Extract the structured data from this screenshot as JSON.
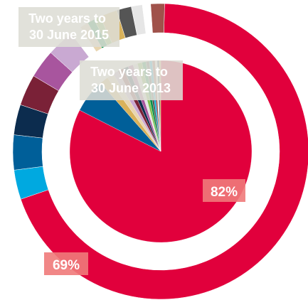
{
  "chart_data": [
    {
      "type": "pie",
      "style": "donut",
      "position": "outer",
      "series_label": "Two years to\n30 June 2015",
      "slices": [
        {
          "value": 69.0,
          "color": "#e1003c",
          "label": "69%"
        },
        {
          "value": 3.2,
          "color": "#00a9e0"
        },
        {
          "value": 3.8,
          "color": "#005f99"
        },
        {
          "value": 3.3,
          "color": "#0c2c4e"
        },
        {
          "value": 3.4,
          "color": "#7a2137"
        },
        {
          "value": 3.1,
          "color": "#a8559e"
        },
        {
          "value": 3.0,
          "color": "#c9a9d2"
        },
        {
          "value": 1.2,
          "color": "#ffffff"
        },
        {
          "value": 0.9,
          "color": "#e8d5b0"
        },
        {
          "value": 0.8,
          "color": "#008c45"
        },
        {
          "value": 0.7,
          "color": "#7fbf4d"
        },
        {
          "value": 1.9,
          "color": "#d9b25a"
        },
        {
          "value": 1.6,
          "color": "#555555"
        },
        {
          "value": 1.2,
          "color": "#e6e6e6"
        },
        {
          "value": 0.9,
          "color": "#ffffff"
        },
        {
          "value": 1.5,
          "color": "#a0524b"
        }
      ]
    },
    {
      "type": "pie",
      "position": "inner",
      "series_label": "Two years to\n30 June 2013",
      "slices": [
        {
          "value": 82.0,
          "color": "#e1003c",
          "label": "82%"
        },
        {
          "value": 6.0,
          "color": "#005f99"
        },
        {
          "value": 1.5,
          "color": "#d9b25a"
        },
        {
          "value": 1.2,
          "color": "#e8d5b0"
        },
        {
          "value": 1.0,
          "color": "#c9a9d2"
        },
        {
          "value": 1.0,
          "color": "#7a2137"
        },
        {
          "value": 0.9,
          "color": "#0c2c4e"
        },
        {
          "value": 0.9,
          "color": "#a8559e"
        },
        {
          "value": 0.8,
          "color": "#e6e6e6"
        },
        {
          "value": 0.8,
          "color": "#7fbf4d"
        },
        {
          "value": 0.7,
          "color": "#008c45"
        },
        {
          "value": 0.6,
          "color": "#555555"
        },
        {
          "value": 0.5,
          "color": "#00a9e0"
        },
        {
          "value": 0.5,
          "color": "#a0524b"
        },
        {
          "value": 0.4,
          "color": "#ffffff"
        },
        {
          "value": 0.3,
          "color": "#0c2c4e"
        },
        {
          "value": 0.3,
          "color": "#d9b25a"
        }
      ]
    }
  ]
}
